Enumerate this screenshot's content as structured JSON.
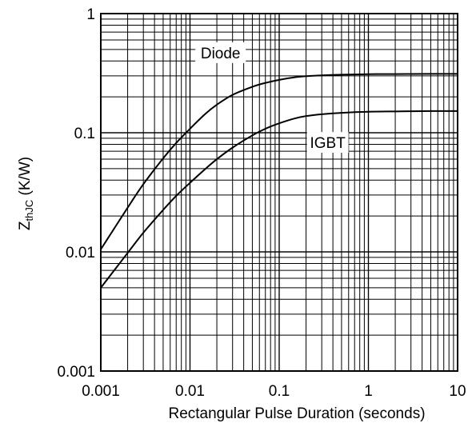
{
  "chart_data": {
    "type": "line",
    "title": "",
    "xlabel": "Rectangular Pulse Duration (seconds)",
    "ylabel_main": "Z",
    "ylabel_sub": "thJC",
    "ylabel_unit": " (K/W)",
    "x_scale": "log",
    "y_scale": "log",
    "xlim": [
      0.001,
      10
    ],
    "ylim": [
      0.001,
      1
    ],
    "grid": true,
    "x_ticks": [
      {
        "value": 0.001,
        "label": "0.001"
      },
      {
        "value": 0.01,
        "label": "0.01"
      },
      {
        "value": 0.1,
        "label": "0.1"
      },
      {
        "value": 1,
        "label": "1"
      },
      {
        "value": 10,
        "label": "10"
      }
    ],
    "y_ticks": [
      {
        "value": 0.001,
        "label": "0.001"
      },
      {
        "value": 0.01,
        "label": "0.01"
      },
      {
        "value": 0.1,
        "label": "0.1"
      },
      {
        "value": 1,
        "label": "1"
      }
    ],
    "series": [
      {
        "name": "Diode",
        "color": "#000000",
        "points": [
          [
            0.001,
            0.0105
          ],
          [
            0.002,
            0.0235
          ],
          [
            0.003,
            0.037
          ],
          [
            0.005,
            0.061
          ],
          [
            0.007,
            0.082
          ],
          [
            0.01,
            0.108
          ],
          [
            0.015,
            0.145
          ],
          [
            0.02,
            0.172
          ],
          [
            0.03,
            0.208
          ],
          [
            0.05,
            0.243
          ],
          [
            0.07,
            0.262
          ],
          [
            0.1,
            0.278
          ],
          [
            0.15,
            0.292
          ],
          [
            0.2,
            0.298
          ],
          [
            0.3,
            0.303
          ],
          [
            0.5,
            0.307
          ],
          [
            1,
            0.31
          ],
          [
            2,
            0.311
          ],
          [
            5,
            0.312
          ],
          [
            10,
            0.312
          ]
        ]
      },
      {
        "name": "IGBT",
        "color": "#000000",
        "points": [
          [
            0.001,
            0.005
          ],
          [
            0.002,
            0.0098
          ],
          [
            0.003,
            0.0145
          ],
          [
            0.005,
            0.0225
          ],
          [
            0.007,
            0.0295
          ],
          [
            0.01,
            0.038
          ],
          [
            0.015,
            0.05
          ],
          [
            0.02,
            0.06
          ],
          [
            0.03,
            0.075
          ],
          [
            0.05,
            0.095
          ],
          [
            0.07,
            0.108
          ],
          [
            0.1,
            0.12
          ],
          [
            0.15,
            0.132
          ],
          [
            0.2,
            0.138
          ],
          [
            0.3,
            0.143
          ],
          [
            0.5,
            0.147
          ],
          [
            1,
            0.15
          ],
          [
            2,
            0.151
          ],
          [
            5,
            0.152
          ],
          [
            10,
            0.152
          ]
        ]
      }
    ],
    "annotations": [
      {
        "text": "Diode",
        "series": "Diode",
        "x": 0.022,
        "y": 0.47
      },
      {
        "text": "IGBT",
        "series": "IGBT",
        "x": 0.35,
        "y": 0.083
      }
    ]
  }
}
